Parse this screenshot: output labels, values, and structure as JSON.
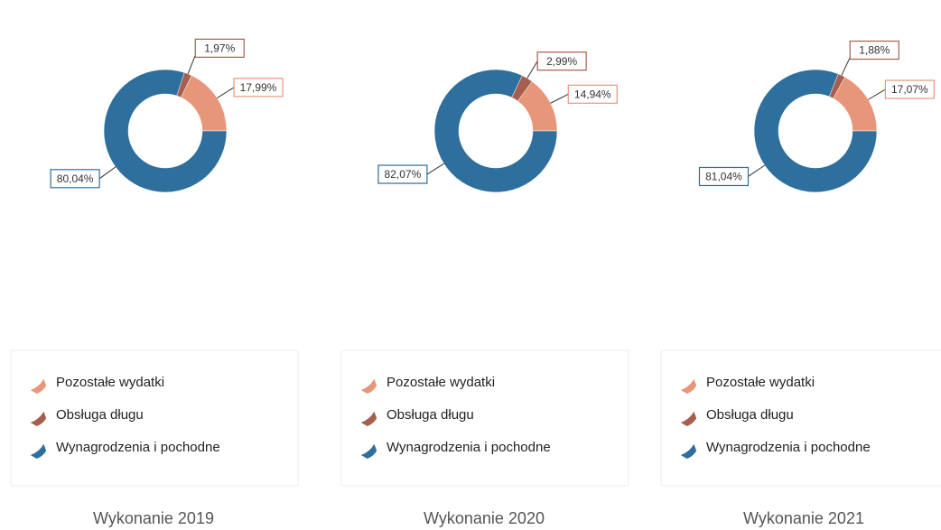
{
  "chart_data": [
    {
      "type": "pie",
      "title": "Wykonanie 2019",
      "categories": [
        "Pozostałe wydatki",
        "Obsługa długu",
        "Wynagrodzenia i pochodne"
      ],
      "values": [
        17.99,
        1.97,
        80.04
      ],
      "value_labels": [
        "17,99%",
        "1,97%",
        "80,04%"
      ],
      "colors": [
        "#e8967a",
        "#a65e4e",
        "#2e6f9e"
      ]
    },
    {
      "type": "pie",
      "title": "Wykonanie 2020",
      "categories": [
        "Pozostałe wydatki",
        "Obsługa długu",
        "Wynagrodzenia i pochodne"
      ],
      "values": [
        14.94,
        2.99,
        82.07
      ],
      "value_labels": [
        "14,94%",
        "2,99%",
        "82,07%"
      ],
      "colors": [
        "#e8967a",
        "#a65e4e",
        "#2e6f9e"
      ]
    },
    {
      "type": "pie",
      "title": "Wykonanie 2021",
      "categories": [
        "Pozostałe wydatki",
        "Obsługa długu",
        "Wynagrodzenia i pochodne"
      ],
      "values": [
        17.07,
        1.88,
        81.04
      ],
      "value_labels": [
        "17,07%",
        "1,88%",
        "81,04%"
      ],
      "colors": [
        "#e8967a",
        "#a65e4e",
        "#2e6f9e"
      ]
    }
  ]
}
